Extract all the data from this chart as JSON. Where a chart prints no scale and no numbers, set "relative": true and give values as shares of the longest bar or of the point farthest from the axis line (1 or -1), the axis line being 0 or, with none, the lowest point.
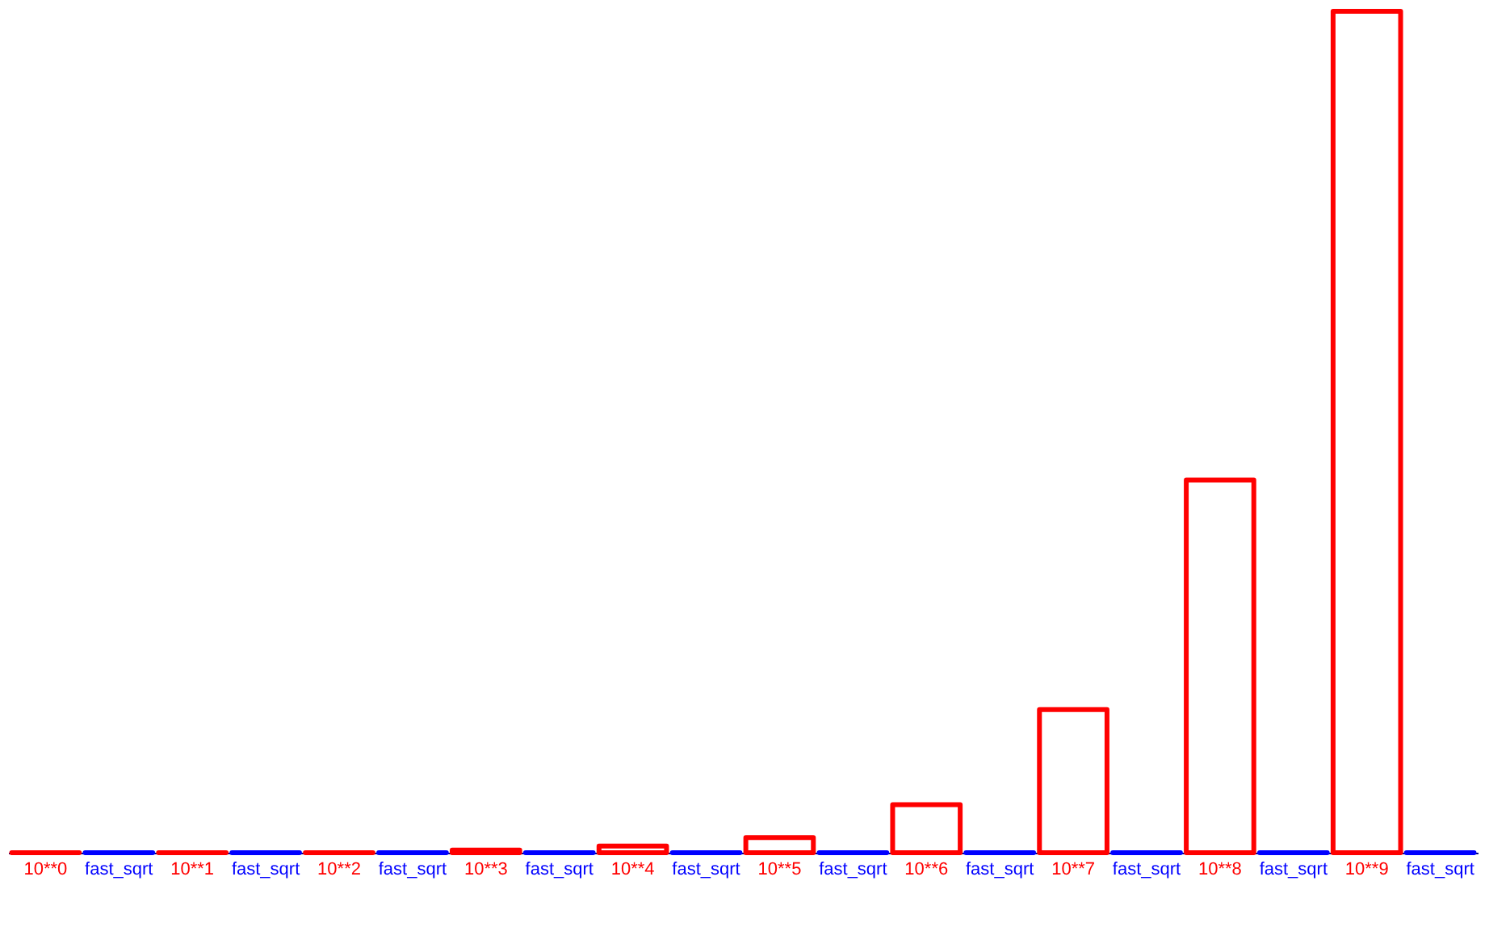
{
  "chart_data": {
    "type": "bar",
    "relative": true,
    "categories": [
      "10**0",
      "fast_sqrt",
      "10**1",
      "fast_sqrt",
      "10**2",
      "fast_sqrt",
      "10**3",
      "fast_sqrt",
      "10**4",
      "fast_sqrt",
      "10**5",
      "fast_sqrt",
      "10**6",
      "fast_sqrt",
      "10**7",
      "fast_sqrt",
      "10**8",
      "fast_sqrt",
      "10**9",
      "fast_sqrt"
    ],
    "values": [
      0,
      0,
      0,
      0,
      0,
      0,
      0.003,
      0,
      0.008,
      0,
      0.018,
      0,
      0.057,
      0,
      0.17,
      0,
      0.443,
      0,
      1,
      0
    ],
    "colors": [
      "#ff0000",
      "#0000ff",
      "#ff0000",
      "#0000ff",
      "#ff0000",
      "#0000ff",
      "#ff0000",
      "#0000ff",
      "#ff0000",
      "#0000ff",
      "#ff0000",
      "#0000ff",
      "#ff0000",
      "#0000ff",
      "#ff0000",
      "#0000ff",
      "#ff0000",
      "#0000ff",
      "#ff0000",
      "#0000ff"
    ],
    "grid": false
  }
}
